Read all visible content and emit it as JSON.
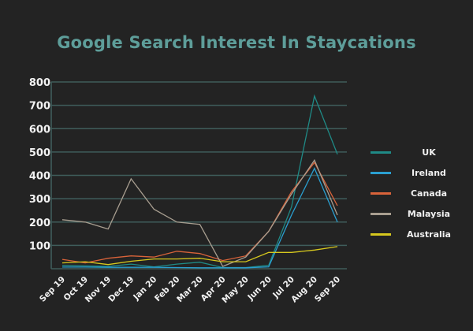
{
  "chart_data": {
    "type": "line",
    "title": "Google Search Interest In Staycations",
    "xlabel": "",
    "ylabel": "",
    "ylim": [
      0,
      800
    ],
    "yticks": [
      100,
      200,
      300,
      400,
      500,
      600,
      700,
      800
    ],
    "grid": true,
    "legend_position": "right",
    "categories": [
      "Sep 19",
      "Oct 19",
      "Nov 19",
      "Dec 19",
      "Jan 20",
      "Feb 20",
      "Mar 20",
      "Apr 20",
      "May 20",
      "Jun 20",
      "Jul 20",
      "Aug 20",
      "Sep 20"
    ],
    "series": [
      {
        "name": "UK",
        "color": "#1f8a86",
        "values": [
          15,
          12,
          10,
          20,
          8,
          20,
          28,
          5,
          5,
          15,
          265,
          740,
          490
        ]
      },
      {
        "name": "Ireland",
        "color": "#2a9fd0",
        "values": [
          7,
          7,
          6,
          6,
          6,
          5,
          4,
          4,
          4,
          8,
          230,
          430,
          200
        ]
      },
      {
        "name": "Canada",
        "color": "#d9633a",
        "values": [
          40,
          25,
          45,
          55,
          50,
          75,
          65,
          35,
          55,
          160,
          330,
          455,
          270
        ]
      },
      {
        "name": "Malaysia",
        "color": "#a89e90",
        "values": [
          210,
          200,
          170,
          385,
          255,
          200,
          190,
          10,
          50,
          160,
          320,
          465,
          230
        ]
      },
      {
        "name": "Australia",
        "color": "#d6c81e",
        "values": [
          25,
          30,
          18,
          32,
          42,
          42,
          45,
          30,
          30,
          70,
          70,
          80,
          95
        ]
      }
    ]
  }
}
